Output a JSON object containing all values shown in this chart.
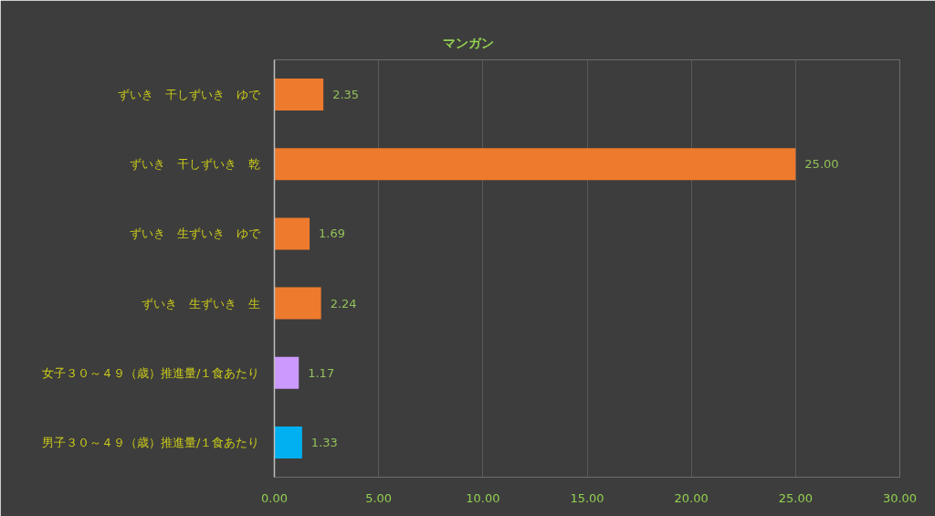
{
  "chart_data": {
    "type": "bar",
    "orientation": "horizontal",
    "title": "マンガン",
    "categories": [
      "ずいき　干しずいき　ゆで",
      "ずいき　干しずいき　乾",
      "ずいき　生ずいき　ゆで",
      "ずいき　生ずいき　生",
      "女子３０～４９（歳）推進量/１食あたり",
      "男子３０～４９（歳）推進量/１食あたり"
    ],
    "values": [
      2.35,
      25.0,
      1.69,
      2.24,
      1.17,
      1.33
    ],
    "value_labels": [
      "2.35",
      "25.00",
      "1.69",
      "2.24",
      "1.17",
      "1.33"
    ],
    "colors": [
      "#ee7a2e",
      "#ee7a2e",
      "#ee7a2e",
      "#ee7a2e",
      "#cc99ff",
      "#00b0f0"
    ],
    "xlim": [
      0,
      30
    ],
    "xticks": [
      {
        "value": 0,
        "label": "0.00"
      },
      {
        "value": 5,
        "label": "5.00"
      },
      {
        "value": 10,
        "label": "10.00"
      },
      {
        "value": 15,
        "label": "15.00"
      },
      {
        "value": 20,
        "label": "20.00"
      },
      {
        "value": 25,
        "label": "25.00"
      },
      {
        "value": 30,
        "label": "30.00"
      }
    ],
    "grid": "x"
  }
}
